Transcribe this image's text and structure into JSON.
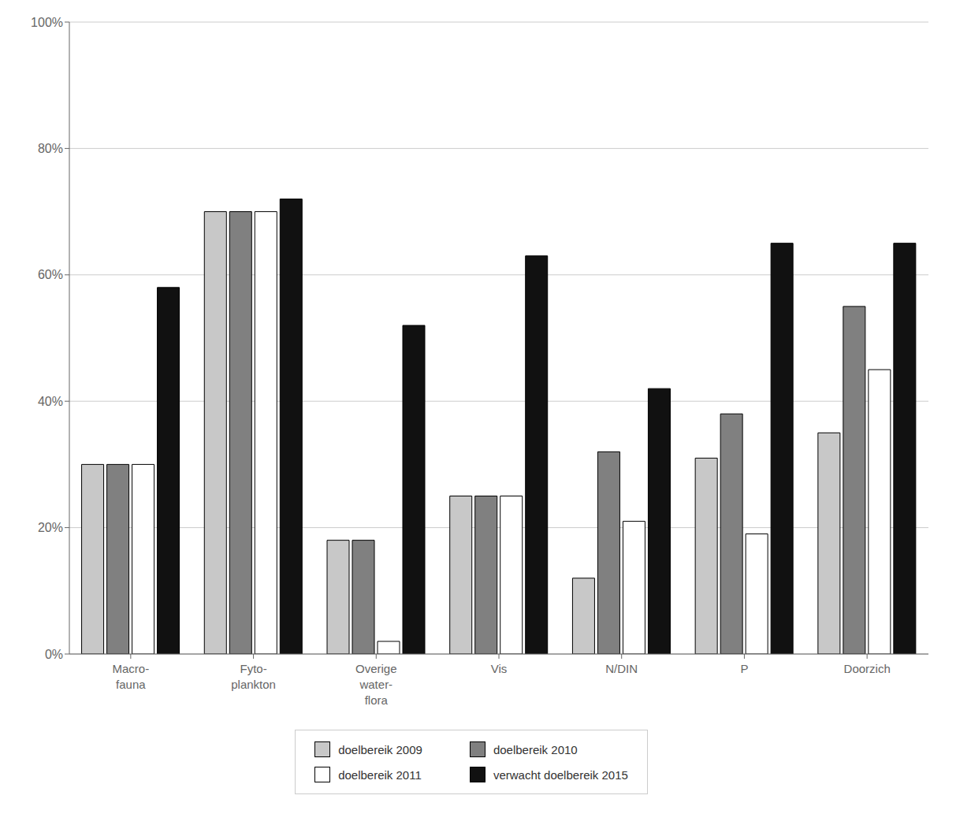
{
  "chart_data": {
    "type": "bar",
    "categories": [
      "Macro-\nfauna",
      "Fyto-\nplankton",
      "Overige\nwater-\nflora",
      "Vis",
      "N/DIN",
      "P",
      "Doorzich"
    ],
    "series": [
      {
        "name": "doelbereik 2009",
        "color": "#c8c8c8",
        "values": [
          0.3,
          0.7,
          0.18,
          0.25,
          0.12,
          0.31,
          0.35
        ]
      },
      {
        "name": "doelbereik 2010",
        "color": "#808080",
        "values": [
          0.3,
          0.7,
          0.18,
          0.25,
          0.32,
          0.38,
          0.55
        ]
      },
      {
        "name": "doelbereik 2011",
        "color": "#ffffff",
        "values": [
          0.3,
          0.7,
          0.02,
          0.25,
          0.21,
          0.19,
          0.45
        ]
      },
      {
        "name": "verwacht doelbereik 2015",
        "color": "#111111",
        "values": [
          0.58,
          0.72,
          0.52,
          0.63,
          0.42,
          0.65,
          0.65
        ]
      }
    ],
    "ylim": [
      0,
      1.0
    ],
    "yticks": [
      {
        "value": 0.0,
        "label": "0%"
      },
      {
        "value": 0.2,
        "label": "20%"
      },
      {
        "value": 0.4,
        "label": "40%"
      },
      {
        "value": 0.6,
        "label": "60%"
      },
      {
        "value": 0.8,
        "label": "80%"
      },
      {
        "value": 1.0,
        "label": "100%"
      }
    ],
    "grid": true,
    "legend": "bottom"
  }
}
